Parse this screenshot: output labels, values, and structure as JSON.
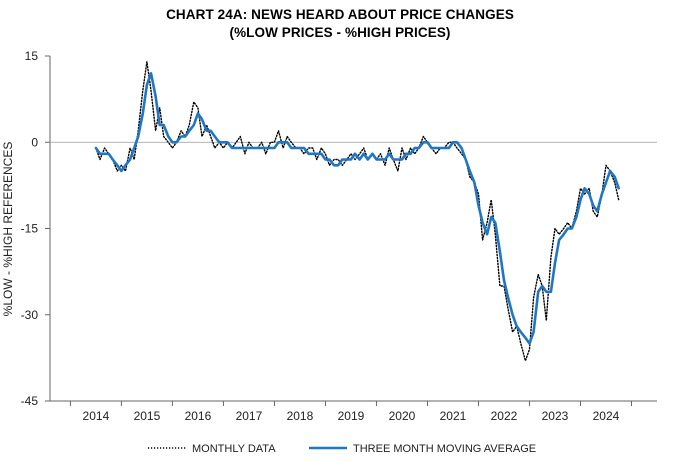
{
  "chart_data": {
    "type": "line",
    "title": "CHART 24A: NEWS HEARD ABOUT PRICE CHANGES",
    "subtitle": "(%LOW PRICES - %HIGH PRICES)",
    "xlabel": "",
    "ylabel": "%LOW - %HIGH REFERENCES",
    "ylim": [
      -45,
      15
    ],
    "xlim": [
      2013.1,
      2025.0
    ],
    "yticks": [
      "15",
      "0",
      "-15",
      "-30",
      "-45"
    ],
    "xticks": [
      "2014",
      "2015",
      "2016",
      "2017",
      "2018",
      "2019",
      "2020",
      "2021",
      "2022",
      "2023",
      "2024"
    ],
    "grid": false,
    "legend_position": "bottom",
    "series": [
      {
        "name": "MONTHLY DATA",
        "style": "dotted",
        "color": "#000000",
        "x": [
          2014.0,
          2014.08,
          2014.17,
          2014.25,
          2014.33,
          2014.42,
          2014.5,
          2014.58,
          2014.67,
          2014.75,
          2014.83,
          2014.92,
          2015.0,
          2015.08,
          2015.17,
          2015.25,
          2015.33,
          2015.42,
          2015.5,
          2015.58,
          2015.67,
          2015.75,
          2015.83,
          2015.92,
          2016.0,
          2016.08,
          2016.17,
          2016.25,
          2016.33,
          2016.42,
          2016.5,
          2016.58,
          2016.67,
          2016.75,
          2016.83,
          2016.92,
          2017.0,
          2017.08,
          2017.17,
          2017.25,
          2017.33,
          2017.42,
          2017.5,
          2017.58,
          2017.67,
          2017.75,
          2017.83,
          2017.92,
          2018.0,
          2018.08,
          2018.17,
          2018.25,
          2018.33,
          2018.42,
          2018.5,
          2018.58,
          2018.67,
          2018.75,
          2018.83,
          2018.92,
          2019.0,
          2019.08,
          2019.17,
          2019.25,
          2019.33,
          2019.42,
          2019.5,
          2019.58,
          2019.67,
          2019.75,
          2019.83,
          2019.92,
          2020.0,
          2020.08,
          2020.17,
          2020.25,
          2020.33,
          2020.42,
          2020.5,
          2020.58,
          2020.67,
          2020.75,
          2020.83,
          2020.92,
          2021.0,
          2021.08,
          2021.17,
          2021.25,
          2021.33,
          2021.42,
          2021.5,
          2021.58,
          2021.67,
          2021.75,
          2021.83,
          2021.92,
          2022.0,
          2022.08,
          2022.17,
          2022.25,
          2022.33,
          2022.42,
          2022.5,
          2022.58,
          2022.67,
          2022.75,
          2022.83,
          2022.92,
          2023.0,
          2023.08,
          2023.17,
          2023.25,
          2023.33,
          2023.42,
          2023.5,
          2023.58,
          2023.67,
          2023.75,
          2023.83,
          2023.92,
          2024.0,
          2024.08,
          2024.17,
          2024.25
        ],
        "values": [
          -1,
          -3,
          -1,
          -2,
          -3,
          -5,
          -4,
          -5,
          -1,
          -3,
          2,
          9,
          14,
          9,
          2,
          6,
          1,
          0,
          -1,
          0,
          2,
          1,
          3,
          7,
          6,
          1,
          3,
          1,
          -1,
          0,
          -1,
          0,
          -1,
          0,
          1,
          -2,
          0,
          -1,
          -1,
          0,
          -2,
          0,
          0,
          2,
          -1,
          1,
          0,
          -1,
          -1,
          -2,
          -1,
          -1,
          -3,
          -1,
          -2,
          -4,
          -3,
          -3,
          -4,
          -3,
          -2,
          -3,
          -2,
          -1,
          -3,
          -2,
          -3,
          -2,
          -4,
          -1,
          -3,
          -5,
          -1,
          -3,
          -1,
          -2,
          -1,
          1,
          0,
          -1,
          -2,
          -1,
          -1,
          0,
          0,
          -1,
          -2,
          -3,
          -6,
          -7,
          -9,
          -17,
          -14,
          -10,
          -16,
          -25,
          -25,
          -29,
          -33,
          -32,
          -35,
          -38,
          -36,
          -27,
          -23,
          -25,
          -31,
          -20,
          -15,
          -16,
          -15,
          -14,
          -15,
          -12,
          -8,
          -9,
          -8,
          -12,
          -13,
          -9,
          -4,
          -5,
          -7,
          -10
        ]
      },
      {
        "name": "THREE MONTH MOVING AVERAGE",
        "style": "solid",
        "color": "#1f77c4",
        "x": [
          2014.0,
          2014.08,
          2014.17,
          2014.25,
          2014.33,
          2014.42,
          2014.5,
          2014.58,
          2014.67,
          2014.75,
          2014.83,
          2014.92,
          2015.0,
          2015.08,
          2015.17,
          2015.25,
          2015.33,
          2015.42,
          2015.5,
          2015.58,
          2015.67,
          2015.75,
          2015.83,
          2015.92,
          2016.0,
          2016.08,
          2016.17,
          2016.25,
          2016.33,
          2016.42,
          2016.5,
          2016.58,
          2016.67,
          2016.75,
          2016.83,
          2016.92,
          2017.0,
          2017.08,
          2017.17,
          2017.25,
          2017.33,
          2017.42,
          2017.5,
          2017.58,
          2017.67,
          2017.75,
          2017.83,
          2017.92,
          2018.0,
          2018.08,
          2018.17,
          2018.25,
          2018.33,
          2018.42,
          2018.5,
          2018.58,
          2018.67,
          2018.75,
          2018.83,
          2018.92,
          2019.0,
          2019.08,
          2019.17,
          2019.25,
          2019.33,
          2019.42,
          2019.5,
          2019.58,
          2019.67,
          2019.75,
          2019.83,
          2019.92,
          2020.0,
          2020.08,
          2020.17,
          2020.25,
          2020.33,
          2020.42,
          2020.5,
          2020.58,
          2020.67,
          2020.75,
          2020.83,
          2020.92,
          2021.0,
          2021.08,
          2021.17,
          2021.25,
          2021.33,
          2021.42,
          2021.5,
          2021.58,
          2021.67,
          2021.75,
          2021.83,
          2021.92,
          2022.0,
          2022.08,
          2022.17,
          2022.25,
          2022.33,
          2022.42,
          2022.5,
          2022.58,
          2022.67,
          2022.75,
          2022.83,
          2022.92,
          2023.0,
          2023.08,
          2023.17,
          2023.25,
          2023.33,
          2023.42,
          2023.5,
          2023.58,
          2023.67,
          2023.75,
          2023.83,
          2023.92,
          2024.0,
          2024.08,
          2024.17,
          2024.25
        ],
        "values": [
          -1,
          -2,
          -2,
          -2,
          -3,
          -4,
          -5,
          -4,
          -3,
          -1,
          1,
          5,
          10,
          12,
          8,
          3,
          3,
          1,
          0,
          0,
          1,
          1,
          2,
          3,
          5,
          4,
          2,
          2,
          1,
          0,
          0,
          0,
          -1,
          -1,
          -1,
          -1,
          -1,
          -1,
          -1,
          -1,
          -1,
          -1,
          -1,
          0,
          0,
          0,
          -1,
          -1,
          -1,
          -1,
          -2,
          -2,
          -2,
          -2,
          -3,
          -3,
          -4,
          -4,
          -3,
          -3,
          -3,
          -2,
          -3,
          -2,
          -3,
          -2,
          -3,
          -3,
          -3,
          -2,
          -3,
          -3,
          -3,
          -2,
          -2,
          -1,
          -1,
          0,
          0,
          -1,
          -1,
          -1,
          -1,
          -1,
          0,
          0,
          -1,
          -3,
          -5,
          -7,
          -11,
          -14,
          -16,
          -13,
          -14,
          -19,
          -24,
          -27,
          -30,
          -32,
          -33,
          -34,
          -35,
          -33,
          -26,
          -25,
          -26,
          -26,
          -21,
          -17,
          -16,
          -15,
          -15,
          -13,
          -10,
          -8,
          -9,
          -11,
          -12,
          -9,
          -7,
          -5,
          -6,
          -8
        ]
      }
    ]
  }
}
